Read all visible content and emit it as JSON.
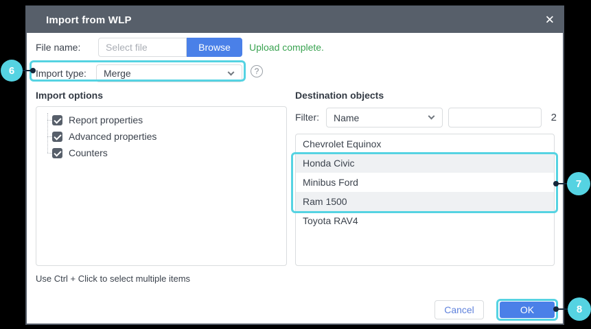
{
  "dialog": {
    "title": "Import from WLP",
    "close_glyph": "✕"
  },
  "file_row": {
    "label": "File name:",
    "placeholder": "Select file",
    "value": "",
    "browse_label": "Browse",
    "status": "Upload complete."
  },
  "import_type": {
    "label": "Import type:",
    "value": "Merge",
    "help_glyph": "?"
  },
  "import_options": {
    "heading": "Import options",
    "items": [
      {
        "label": "Report properties",
        "checked": true
      },
      {
        "label": "Advanced properties",
        "checked": true
      },
      {
        "label": "Counters",
        "checked": true
      }
    ]
  },
  "destination": {
    "heading": "Destination objects",
    "filter_label": "Filter:",
    "filter_field": "Name",
    "filter_value": "",
    "count": "2",
    "items": [
      "Chevrolet Equinox",
      "Honda Civic",
      "Minibus Ford",
      "Ram 1500",
      "Toyota RAV4"
    ],
    "selected_items": [
      "Honda Civic",
      "Minibus Ford",
      "Ram 1500"
    ]
  },
  "hint": "Use Ctrl + Click to select multiple items",
  "footer": {
    "cancel_label": "Cancel",
    "ok_label": "OK"
  },
  "callouts": {
    "import_type": "6",
    "selected_items": "7",
    "ok": "8"
  },
  "colors": {
    "titlebar": "#575f6a",
    "accent_blue": "#4a80e8",
    "success_green": "#3aa351",
    "callout_cyan": "#55d3e2",
    "connector_navy": "#15273a",
    "row_stripe": "#eff1f3"
  }
}
